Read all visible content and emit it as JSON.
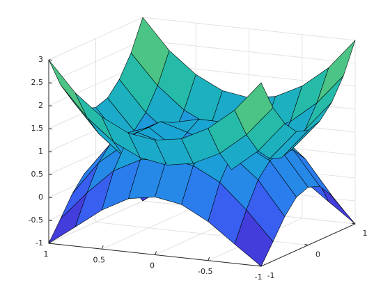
{
  "chart_data": {
    "type": "surface",
    "x": [
      -1,
      -0.75,
      -0.5,
      -0.25,
      0,
      0.25,
      0.5,
      0.75,
      1
    ],
    "y": [
      -1,
      -0.75,
      -0.5,
      -0.25,
      0,
      0.25,
      0.5,
      0.75,
      1
    ],
    "series": [
      {
        "values": [
          [
            3,
            2.34,
            1.88,
            1.59,
            1.5,
            1.59,
            1.88,
            2.34,
            3
          ],
          [
            2.34,
            1.69,
            1.22,
            0.94,
            0.84,
            0.94,
            1.22,
            1.69,
            2.34
          ],
          [
            1.88,
            1.22,
            0.75,
            0.47,
            0.38,
            0.47,
            0.75,
            1.22,
            1.88
          ],
          [
            1.59,
            0.94,
            0.47,
            0.19,
            0.09,
            0.19,
            0.47,
            0.94,
            1.59
          ],
          [
            1.5,
            0.84,
            0.38,
            0.09,
            0,
            0.09,
            0.38,
            0.84,
            1.5
          ],
          [
            1.59,
            0.94,
            0.47,
            0.19,
            0.09,
            0.19,
            0.47,
            0.94,
            1.59
          ],
          [
            1.88,
            1.22,
            0.75,
            0.47,
            0.38,
            0.47,
            0.75,
            1.22,
            1.88
          ],
          [
            2.34,
            1.69,
            1.22,
            0.94,
            0.84,
            0.94,
            1.22,
            1.69,
            2.34
          ],
          [
            3,
            2.34,
            1.88,
            1.59,
            1.5,
            1.59,
            1.88,
            2.34,
            3
          ]
        ]
      },
      {
        "values": [
          [
            -1,
            -0.58,
            -0.15,
            0.16,
            0.26,
            0.16,
            -0.15,
            -0.58,
            -1
          ],
          [
            -0.58,
            0.05,
            0.59,
            0.89,
            0.98,
            0.89,
            0.59,
            0.05,
            -0.58
          ],
          [
            -0.15,
            0.59,
            1.06,
            1.2,
            1.19,
            1.2,
            1.06,
            0.59,
            -0.15
          ],
          [
            0.16,
            0.89,
            1.2,
            1.03,
            0.8,
            1.03,
            1.2,
            0.89,
            0.16
          ],
          [
            0.26,
            0.98,
            1.19,
            0.8,
            0,
            0.8,
            1.19,
            0.98,
            0.26
          ],
          [
            0.16,
            0.89,
            1.2,
            1.03,
            0.8,
            1.03,
            1.2,
            0.89,
            0.16
          ],
          [
            -0.15,
            0.59,
            1.06,
            1.2,
            1.19,
            1.2,
            1.06,
            0.59,
            -0.15
          ],
          [
            -0.58,
            0.05,
            0.59,
            0.89,
            0.98,
            0.89,
            0.59,
            0.05,
            -0.58
          ],
          [
            -1,
            -0.58,
            -0.15,
            0.16,
            0.26,
            0.16,
            -0.15,
            -0.58,
            -1
          ]
        ]
      }
    ],
    "xlim": [
      -1,
      1
    ],
    "ylim": [
      -1,
      1
    ],
    "zlim": [
      -1,
      3
    ],
    "xticks": [
      -1,
      -0.5,
      0,
      0.5,
      1
    ],
    "yticks": [
      -1,
      0,
      1
    ],
    "zticks": [
      -1,
      -0.5,
      0,
      0.5,
      1,
      1.5,
      2,
      2.5,
      3
    ],
    "grid": true,
    "colormap": [
      "#3e26a8",
      "#4346f0",
      "#2c7bf0",
      "#1aa2d6",
      "#1fb9b0",
      "#4ac486",
      "#9bc84a"
    ],
    "edge_color": "#000000"
  }
}
